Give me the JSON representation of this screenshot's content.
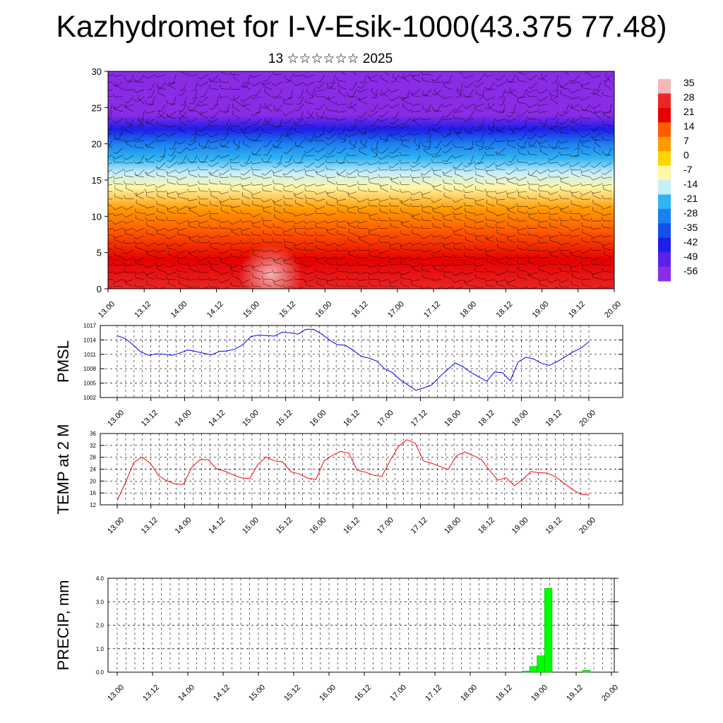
{
  "page": {
    "title": "Kazhydromet for I-V-Esik-1000(43.375 77.48)",
    "subtitle": "13 ☆☆☆☆☆☆ 2025"
  },
  "time_ticks": [
    "13.00",
    "13.12",
    "14.00",
    "14.12",
    "15.00",
    "15.12",
    "16.00",
    "16.12",
    "17.00",
    "17.12",
    "18.00",
    "18.12",
    "19.00",
    "19.12",
    "20.00"
  ],
  "colorbar": {
    "labels": [
      "35",
      "28",
      "21",
      "14",
      "7",
      "0",
      "-7",
      "-14",
      "-21",
      "-28",
      "-35",
      "-42",
      "-49",
      "-56"
    ],
    "colors": [
      "#f3b9b9",
      "#ea2626",
      "#e60000",
      "#ff5a00",
      "#ff9a00",
      "#ffd400",
      "#fff6a8",
      "#c8eef8",
      "#31b4f2",
      "#1c7ff0",
      "#1450ec",
      "#1d1ee8",
      "#5a22e6",
      "#8a2be6"
    ]
  },
  "chart_data": [
    {
      "type": "heatmap",
      "name": "vertical-section",
      "ylim": [
        0,
        30
      ],
      "yticks": [
        0,
        5,
        10,
        15,
        20,
        25,
        30
      ],
      "xticks": [
        "13.00",
        "13.12",
        "14.00",
        "14.12",
        "15.00",
        "15.12",
        "16.00",
        "16.12",
        "17.00",
        "17.12",
        "18.00",
        "18.12",
        "19.00",
        "19.12",
        "20.00"
      ],
      "bands": [
        {
          "level": 0,
          "value": 28
        },
        {
          "level": 4,
          "value": 24
        },
        {
          "level": 8,
          "value": 16
        },
        {
          "level": 11,
          "value": 7
        },
        {
          "level": 14,
          "value": -4
        },
        {
          "level": 16,
          "value": -10
        },
        {
          "level": 18,
          "value": -18
        },
        {
          "level": 20,
          "value": -26
        },
        {
          "level": 22,
          "value": -38
        },
        {
          "level": 24,
          "value": -50
        },
        {
          "level": 26,
          "value": -54
        },
        {
          "level": 28,
          "value": -56
        },
        {
          "level": 30,
          "value": -56
        }
      ],
      "warm_peak": {
        "time_index": 4.5,
        "level": 2,
        "value": 35
      }
    },
    {
      "type": "line",
      "name": "pmsl",
      "ylabel": "PMSL",
      "ylim": [
        1002,
        1017
      ],
      "yticks": [
        1002,
        1005,
        1008,
        1011,
        1014,
        1017
      ],
      "color": "#0000ff",
      "values": [
        1014.9,
        1014.3,
        1013.0,
        1011.5,
        1010.8,
        1011.1,
        1011.0,
        1010.8,
        1011.3,
        1011.9,
        1011.6,
        1011.2,
        1010.9,
        1011.6,
        1011.7,
        1012.1,
        1013.0,
        1014.7,
        1015.0,
        1014.9,
        1014.8,
        1015.6,
        1015.5,
        1015.2,
        1016.2,
        1016.2,
        1015.2,
        1014.0,
        1013.0,
        1012.9,
        1011.9,
        1010.6,
        1010.2,
        1009.6,
        1008.0,
        1007.2,
        1005.7,
        1004.6,
        1003.5,
        1004.0,
        1004.6,
        1006.3,
        1007.8,
        1009.2,
        1008.4,
        1007.2,
        1006.3,
        1005.4,
        1007.3,
        1007.2,
        1005.5,
        1009.4,
        1010.4,
        1010.0,
        1009.1,
        1008.7,
        1009.5,
        1010.5,
        1011.5,
        1012.3,
        1013.6
      ]
    },
    {
      "type": "line",
      "name": "temp-2m",
      "ylabel": "TEMP at 2 M",
      "ylim": [
        12,
        36
      ],
      "yticks": [
        12,
        16,
        20,
        24,
        28,
        32,
        36
      ],
      "color": "#ff0000",
      "values": [
        13.5,
        19.5,
        26.2,
        28.1,
        26.0,
        21.8,
        20.1,
        19.0,
        18.9,
        24.6,
        27.2,
        27.2,
        24.1,
        23.3,
        22.1,
        21.1,
        20.8,
        25.6,
        28.1,
        26.8,
        26.4,
        23.1,
        22.4,
        21.0,
        20.5,
        26.8,
        28.6,
        30.0,
        29.4,
        23.6,
        23.0,
        21.9,
        21.6,
        27.0,
        31.7,
        33.9,
        32.8,
        26.8,
        26.0,
        24.9,
        23.9,
        28.5,
        29.8,
        28.6,
        27.3,
        23.6,
        20.3,
        21.1,
        18.4,
        20.5,
        23.2,
        22.8,
        22.7,
        21.4,
        19.3,
        17.2,
        15.6,
        15.3
      ]
    },
    {
      "type": "bar",
      "name": "precip",
      "ylabel": "PRECIP, mm",
      "ylim": [
        0,
        4
      ],
      "yticks": [
        "0.0",
        "1.0",
        "2.0",
        "3.0",
        "4.0"
      ],
      "color": "#00ff00",
      "bars": [
        {
          "time_index": 11.58,
          "value": 0.05
        },
        {
          "time_index": 11.79,
          "value": 0.25
        },
        {
          "time_index": 12.0,
          "value": 0.7
        },
        {
          "time_index": 12.21,
          "value": 3.57
        },
        {
          "time_index": 13.29,
          "value": 0.08
        }
      ]
    }
  ]
}
